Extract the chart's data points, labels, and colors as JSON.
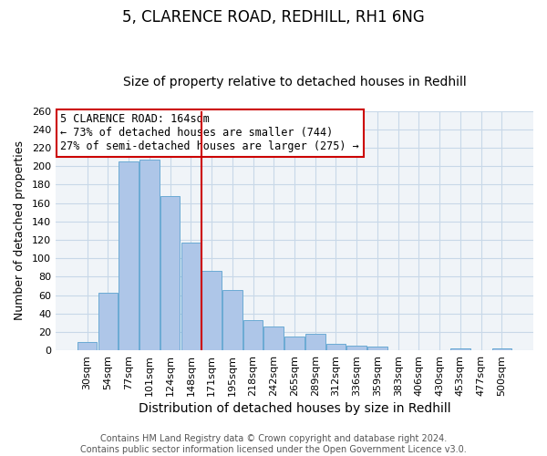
{
  "title": "5, CLARENCE ROAD, REDHILL, RH1 6NG",
  "subtitle": "Size of property relative to detached houses in Redhill",
  "xlabel": "Distribution of detached houses by size in Redhill",
  "ylabel": "Number of detached properties",
  "bar_labels": [
    "30sqm",
    "54sqm",
    "77sqm",
    "101sqm",
    "124sqm",
    "148sqm",
    "171sqm",
    "195sqm",
    "218sqm",
    "242sqm",
    "265sqm",
    "289sqm",
    "312sqm",
    "336sqm",
    "359sqm",
    "383sqm",
    "406sqm",
    "430sqm",
    "453sqm",
    "477sqm",
    "500sqm"
  ],
  "bar_heights": [
    9,
    63,
    205,
    207,
    168,
    117,
    86,
    65,
    33,
    26,
    15,
    18,
    7,
    5,
    4,
    0,
    0,
    0,
    2,
    0,
    2
  ],
  "bar_color": "#aec6e8",
  "bar_edge_color": "#6aaad4",
  "vline_color": "#cc0000",
  "annotation_box_title": "5 CLARENCE ROAD: 164sqm",
  "annotation_line1": "← 73% of detached houses are smaller (744)",
  "annotation_line2": "27% of semi-detached houses are larger (275) →",
  "annotation_box_edge_color": "#cc0000",
  "ylim": [
    0,
    260
  ],
  "yticks": [
    0,
    20,
    40,
    60,
    80,
    100,
    120,
    140,
    160,
    180,
    200,
    220,
    240,
    260
  ],
  "footer_line1": "Contains HM Land Registry data © Crown copyright and database right 2024.",
  "footer_line2": "Contains public sector information licensed under the Open Government Licence v3.0.",
  "title_fontsize": 12,
  "subtitle_fontsize": 10,
  "xlabel_fontsize": 10,
  "ylabel_fontsize": 9,
  "tick_fontsize": 8,
  "footer_fontsize": 7,
  "grid_color": "#c8d8e8",
  "bg_color": "#f0f4f8"
}
